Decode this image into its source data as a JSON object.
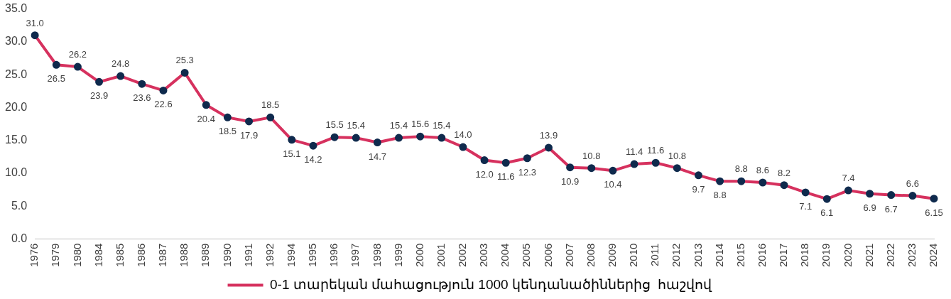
{
  "chart_data": {
    "type": "line",
    "categories": [
      "1976",
      "1979",
      "1980",
      "1984",
      "1985",
      "1986",
      "1987",
      "1988",
      "1989",
      "1990",
      "1991",
      "1992",
      "1994",
      "1995",
      "1996",
      "1997",
      "1998",
      "1999",
      "2000",
      "2001",
      "2002",
      "2003",
      "2004",
      "2005",
      "2006",
      "2007",
      "2008",
      "2009",
      "2010",
      "2011",
      "2012",
      "2013",
      "2014",
      "2015",
      "2016",
      "2017",
      "2018",
      "2019",
      "2020",
      "2021",
      "2022",
      "2023",
      "2024"
    ],
    "series": [
      {
        "name": "0-1 տարեկան մահացություն 1000 կենդանածիններից  հաշվով",
        "color": "#d6315e",
        "values": [
          31.0,
          26.5,
          26.2,
          23.9,
          24.8,
          23.6,
          22.6,
          25.3,
          20.4,
          18.5,
          17.9,
          18.5,
          15.1,
          14.2,
          15.5,
          15.4,
          14.7,
          15.4,
          15.6,
          15.4,
          14.0,
          12.0,
          11.6,
          12.3,
          13.9,
          10.9,
          10.8,
          10.4,
          11.4,
          11.6,
          10.8,
          9.7,
          8.8,
          8.8,
          8.6,
          8.2,
          7.1,
          6.1,
          7.4,
          6.9,
          6.7,
          6.6,
          6.15
        ],
        "value_labels": [
          "31.0",
          "26.5",
          "26.2",
          "23.9",
          "24.8",
          "23.6",
          "22.6",
          "25.3",
          "20.4",
          "18.5",
          "17.9",
          "18.5",
          "15.1",
          "14.2",
          "15.5",
          "15.4",
          "14.7",
          "15.4",
          "15.6",
          "15.4",
          "14.0",
          "12.0",
          "11.6",
          "12.3",
          "13.9",
          "10.9",
          "10.8",
          "10.4",
          "11.4",
          "11.6",
          "10.8",
          "9.7",
          "8.8",
          "8.8",
          "8.6",
          "8.2",
          "7.1",
          "6.1",
          "7.4",
          "6.9",
          "6.7",
          "6.6",
          "6.15"
        ]
      }
    ],
    "ylim": [
      0,
      35
    ],
    "yticks": [
      {
        "value": 0,
        "label": "0.0"
      },
      {
        "value": 5,
        "label": "5.0"
      },
      {
        "value": 10,
        "label": "10.0"
      },
      {
        "value": 15,
        "label": "15.0"
      },
      {
        "value": 20,
        "label": "20.0"
      },
      {
        "value": 25,
        "label": "25.0"
      },
      {
        "value": 30,
        "label": "30.0"
      },
      {
        "value": 35,
        "label": "35.0"
      }
    ],
    "grid": false,
    "legend": "bottom",
    "marker": "circle",
    "line_style": "solid"
  }
}
